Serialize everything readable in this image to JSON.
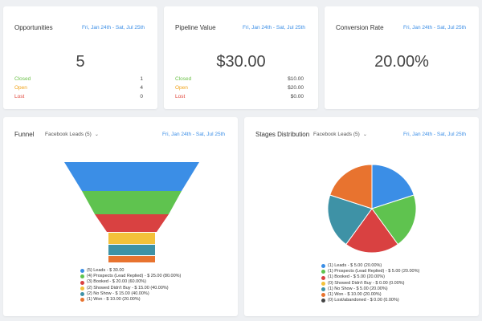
{
  "date_range": "Fri, Jan 24th - Sat, Jul 25th",
  "opportunities": {
    "title": "Opportunities",
    "value": "5",
    "rows": [
      {
        "label": "Closed",
        "value": "1"
      },
      {
        "label": "Open",
        "value": "4"
      },
      {
        "label": "Lost",
        "value": "0"
      }
    ]
  },
  "pipeline": {
    "title": "Pipeline Value",
    "value": "$30.00",
    "rows": [
      {
        "label": "Closed",
        "value": "$10.00"
      },
      {
        "label": "Open",
        "value": "$20.00"
      },
      {
        "label": "Lost",
        "value": "$0.00"
      }
    ]
  },
  "conversion": {
    "title": "Conversion Rate",
    "value": "20.00%"
  },
  "funnel": {
    "title": "Funnel",
    "filter": "Facebook Leads (5)",
    "legend": [
      {
        "text": "(5) Leads - $ 30.00",
        "color": "#3b8ee6"
      },
      {
        "text": "(4) Prospects (Lead Replied) - $ 25.00 (80.00%)",
        "color": "#5fc34f"
      },
      {
        "text": "(3) Booked - $ 20.00 (60.00%)",
        "color": "#d94141"
      },
      {
        "text": "(2) Showed Didn't Buy - $ 15.00 (40.00%)",
        "color": "#f3c13a"
      },
      {
        "text": "(2) No Show - $ 15.00 (40.00%)",
        "color": "#3e92a6"
      },
      {
        "text": "(1) Won - $ 10.00 (20.00%)",
        "color": "#e8732f"
      }
    ]
  },
  "stages": {
    "title": "Stages Distribution",
    "filter": "Facebook Leads (5)",
    "legend": [
      {
        "text": "(1) Leads - $ 5.00 (20.00%)",
        "color": "#3b8ee6"
      },
      {
        "text": "(1) Prospects (Lead Replied) - $ 5.00 (20.00%)",
        "color": "#5fc34f"
      },
      {
        "text": "(1) Booked - $ 5.00 (20.00%)",
        "color": "#d94141"
      },
      {
        "text": "(0) Showed Didn't Buy - $ 0.00 (0.00%)",
        "color": "#f3c13a"
      },
      {
        "text": "(1) No Show - $ 5.00 (20.00%)",
        "color": "#3e92a6"
      },
      {
        "text": "(1) Won - $ 10.00 (20.00%)",
        "color": "#e8732f"
      },
      {
        "text": "(0) Lost/abandoned - $ 0.00 (0.00%)",
        "color": "#444444"
      }
    ]
  }
}
